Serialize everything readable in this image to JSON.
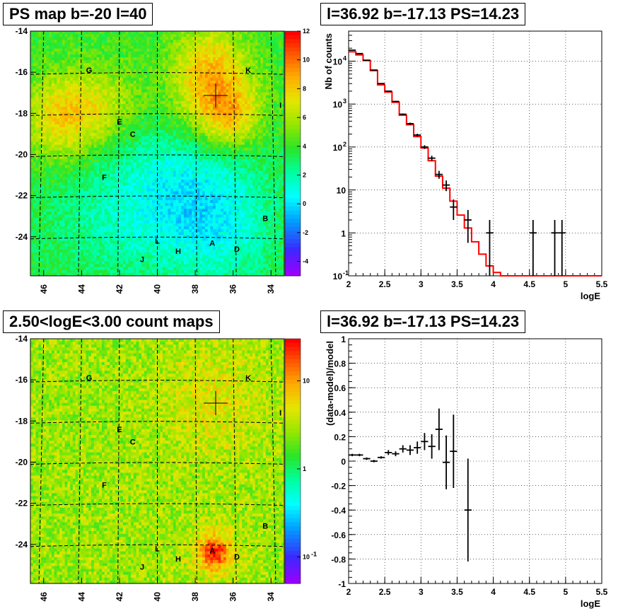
{
  "panels": {
    "tl_title": "PS map b=-20 l=40",
    "tr_title": "l=36.92 b=-17.13 PS=14.23",
    "bl_title": "2.50<logE<3.00 count maps",
    "br_title": "l=36.92 b=-17.13 PS=14.23"
  },
  "chart_data": [
    {
      "type": "heatmap",
      "title": "PS map b=-20 l=40",
      "x_ticks": [
        "46",
        "44",
        "42",
        "40",
        "38",
        "36",
        "34"
      ],
      "x_tick_values": [
        46,
        44,
        42,
        40,
        38,
        36,
        34
      ],
      "xlim": [
        46.7,
        33.3
      ],
      "y_ticks": [
        "-14",
        "-16",
        "-18",
        "-20",
        "-22",
        "-24"
      ],
      "y_tick_values": [
        -14,
        -16,
        -18,
        -20,
        -22,
        -24
      ],
      "ylim": [
        -25.9,
        -14
      ],
      "colorbar_ticks": [
        "12",
        "10",
        "8",
        "6",
        "4",
        "2",
        "0",
        "-2",
        "-4"
      ],
      "colorbar_values": [
        12,
        10,
        8,
        6,
        4,
        2,
        0,
        -2,
        -4
      ],
      "colorbar_range": [
        -5,
        12
      ],
      "grid": true,
      "marker": {
        "l": 36.92,
        "b": -17.13
      },
      "sources": [
        {
          "name": "G",
          "l": 43.6,
          "b": -15.9
        },
        {
          "name": "K",
          "l": 35.2,
          "b": -15.9
        },
        {
          "name": "I",
          "l": 33.5,
          "b": -17.6
        },
        {
          "name": "E",
          "l": 42.0,
          "b": -18.4
        },
        {
          "name": "C",
          "l": 41.3,
          "b": -19.0
        },
        {
          "name": "F",
          "l": 42.8,
          "b": -21.1
        },
        {
          "name": "B",
          "l": 34.3,
          "b": -23.1
        },
        {
          "name": "L",
          "l": 40.0,
          "b": -24.2
        },
        {
          "name": "A",
          "l": 37.1,
          "b": -24.3
        },
        {
          "name": "D",
          "l": 35.8,
          "b": -24.6
        },
        {
          "name": "H",
          "l": 38.9,
          "b": -24.7
        },
        {
          "name": "J",
          "l": 40.8,
          "b": -25.1
        }
      ]
    },
    {
      "type": "line",
      "title": "l=36.92 b=-17.13 PS=14.23",
      "xlabel": "logE",
      "ylabel": "Nb of counts",
      "xlim": [
        2,
        5.5
      ],
      "ylim": [
        0.1,
        50000
      ],
      "ylog": true,
      "x_ticks": [
        "2",
        "2.5",
        "3",
        "3.5",
        "4",
        "4.5",
        "5",
        "5.5"
      ],
      "y_ticks": [
        "10-1",
        "1",
        "10",
        "10²",
        "10³",
        "10⁴"
      ],
      "grid": true,
      "series": [
        {
          "kind": "data-points",
          "color": "#000000",
          "x": [
            2.05,
            2.15,
            2.25,
            2.35,
            2.45,
            2.55,
            2.65,
            2.75,
            2.85,
            2.95,
            3.05,
            3.15,
            3.25,
            3.35,
            3.45,
            3.65,
            3.95,
            4.55,
            4.85,
            4.95
          ],
          "y": [
            18000,
            15000,
            10500,
            6200,
            3000,
            2000,
            1150,
            580,
            350,
            190,
            100,
            55,
            23,
            13,
            4,
            2,
            1,
            1,
            1,
            1
          ],
          "xerr": 0.05
        },
        {
          "kind": "model-histogram",
          "color": "#ff0000",
          "edges": [
            2.0,
            2.1,
            2.2,
            2.3,
            2.4,
            2.5,
            2.6,
            2.7,
            2.8,
            2.9,
            3.0,
            3.1,
            3.2,
            3.3,
            3.4,
            3.5,
            3.6,
            3.7,
            3.8,
            3.9,
            4.0,
            4.1,
            4.2,
            4.3,
            5.5
          ],
          "values": [
            16500,
            14000,
            10300,
            6000,
            2800,
            1900,
            1100,
            550,
            330,
            175,
            95,
            48,
            21,
            11,
            5.5,
            2.6,
            1.3,
            0.62,
            0.32,
            0.17,
            0.12,
            0.1,
            0.1,
            0.1
          ]
        }
      ]
    },
    {
      "type": "heatmap",
      "title": "2.50<logE<3.00 count maps",
      "x_ticks": [
        "46",
        "44",
        "42",
        "40",
        "38",
        "36",
        "34"
      ],
      "y_ticks": [
        "-14",
        "-16",
        "-18",
        "-20",
        "-22",
        "-24"
      ],
      "colorbar_ticks": [
        "10",
        "1",
        "10-1"
      ],
      "colorbar_log": true,
      "colorbar_range": [
        0.05,
        30
      ],
      "grid": true,
      "marker": {
        "l": 36.92,
        "b": -17.13
      }
    },
    {
      "type": "scatter",
      "title": "l=36.92 b=-17.13 PS=14.23",
      "xlabel": "logE",
      "ylabel": "(data-model)/model",
      "xlim": [
        2,
        5.5
      ],
      "ylim": [
        -1,
        1
      ],
      "x_ticks": [
        "2",
        "2.5",
        "3",
        "3.5",
        "4",
        "4.5",
        "5",
        "5.5"
      ],
      "y_ticks": [
        "1",
        "0.8",
        "0.6",
        "0.4",
        "0.2",
        "0",
        "-0.2",
        "-0.4",
        "-0.6",
        "-0.8",
        "-1"
      ],
      "grid": true,
      "x": [
        2.05,
        2.15,
        2.25,
        2.35,
        2.45,
        2.55,
        2.65,
        2.75,
        2.85,
        2.95,
        3.05,
        3.15,
        3.25,
        3.35,
        3.45,
        3.65
      ],
      "y": [
        0.05,
        0.05,
        0.02,
        0.0,
        0.03,
        0.07,
        0.06,
        0.1,
        0.09,
        0.11,
        0.16,
        0.12,
        0.26,
        -0.01,
        0.08,
        -0.4
      ],
      "yerr": [
        0.01,
        0.01,
        0.01,
        0.01,
        0.01,
        0.02,
        0.02,
        0.03,
        0.04,
        0.05,
        0.07,
        0.1,
        0.17,
        0.22,
        0.3,
        0.42
      ],
      "xerr": 0.05
    }
  ]
}
